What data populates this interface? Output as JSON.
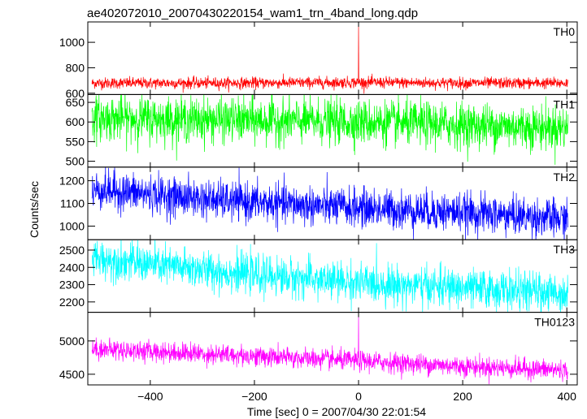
{
  "chart_data": {
    "type": "line",
    "title": "ae402072010_20070430220154_wam1_trn_4band_long.qdp",
    "xlabel": "Time [sec] 0 = 2007/04/30 22:01:54",
    "ylabel": "Counts/sec",
    "xlim": [
      -520,
      420
    ],
    "x_ticks": [
      -400,
      -200,
      0,
      200,
      400
    ],
    "x_tick_labels": [
      "−400",
      "−200",
      "0",
      "200",
      "400"
    ],
    "panels": [
      {
        "label": "TH0",
        "color": "#ff0000",
        "ylim": [
          590,
          1160
        ],
        "y_ticks": [
          600,
          800,
          1000
        ],
        "y_tick_labels": [
          "600",
          "800",
          "1000"
        ],
        "series": {
          "start_level": 680,
          "end_level": 680,
          "noise": 22,
          "spike": 1130,
          "spike_at": 0,
          "trend": [
            [
              -500,
              680
            ],
            [
              -250,
              680
            ],
            [
              0,
              685
            ],
            [
              200,
              680
            ],
            [
              400,
              680
            ]
          ]
        }
      },
      {
        "label": "TH1",
        "color": "#00ff00",
        "ylim": [
          485,
          670
        ],
        "y_ticks": [
          500,
          550,
          600,
          650
        ],
        "y_tick_labels": [
          "500",
          "550",
          "600",
          "650"
        ],
        "series": {
          "start_level": 605,
          "end_level": 585,
          "noise": 28,
          "spike": null,
          "spike_at": 0,
          "trend": [
            [
              -500,
              610
            ],
            [
              -250,
              605
            ],
            [
              0,
              600
            ],
            [
              200,
              592
            ],
            [
              400,
              585
            ]
          ]
        }
      },
      {
        "label": "TH2",
        "color": "#0000ff",
        "ylim": [
          940,
          1260
        ],
        "y_ticks": [
          1000,
          1100,
          1200
        ],
        "y_tick_labels": [
          "1000",
          "1100",
          "1200"
        ],
        "series": {
          "start_level": 1160,
          "end_level": 1030,
          "noise": 42,
          "spike": null,
          "spike_at": 0,
          "trend": [
            [
              -500,
              1160
            ],
            [
              -250,
              1110
            ],
            [
              0,
              1080
            ],
            [
              200,
              1060
            ],
            [
              400,
              1030
            ]
          ]
        }
      },
      {
        "label": "TH3",
        "color": "#00ffff",
        "ylim": [
          2140,
          2560
        ],
        "y_ticks": [
          2200,
          2300,
          2400,
          2500
        ],
        "y_tick_labels": [
          "2200",
          "2300",
          "2400",
          "2500"
        ],
        "series": {
          "start_level": 2440,
          "end_level": 2250,
          "noise": 55,
          "spike": null,
          "spike_at": 0,
          "trend": [
            [
              -500,
              2450
            ],
            [
              -250,
              2370
            ],
            [
              0,
              2310
            ],
            [
              200,
              2280
            ],
            [
              400,
              2250
            ]
          ]
        }
      },
      {
        "label": "TH0123",
        "color": "#ff00ff",
        "ylim": [
          4340,
          5430
        ],
        "y_ticks": [
          4500,
          5000
        ],
        "y_tick_labels": [
          "4500",
          "5000"
        ],
        "series": {
          "start_level": 4880,
          "end_level": 4560,
          "noise": 75,
          "spike": 5380,
          "spike_at": 0,
          "trend": [
            [
              -500,
              4880
            ],
            [
              -250,
              4790
            ],
            [
              0,
              4700
            ],
            [
              200,
              4620
            ],
            [
              400,
              4560
            ]
          ]
        }
      }
    ]
  }
}
